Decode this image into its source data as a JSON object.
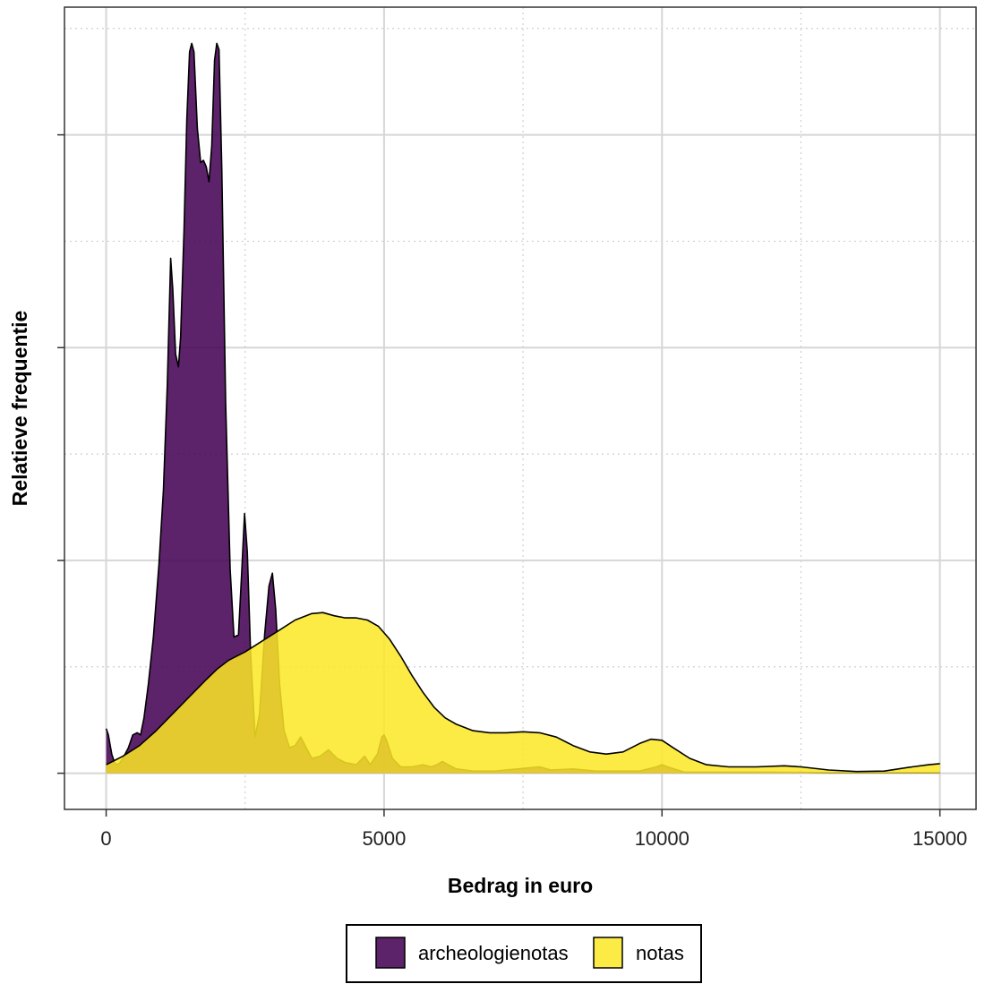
{
  "chart_data": {
    "type": "area",
    "subtype": "density",
    "title": "",
    "xlabel": "Bedrag in euro",
    "ylabel": "Relatieve frequentie",
    "xlim": [
      -750,
      15650
    ],
    "ylim": [
      -0.17,
      3.6
    ],
    "x_ticks": [
      0,
      5000,
      10000,
      15000
    ],
    "x_tick_labels": [
      "0",
      "5000",
      "10000",
      "15000"
    ],
    "y_ticks": [
      0,
      1,
      2,
      3
    ],
    "y_tick_labels_shown": false,
    "grid": true,
    "legend_position": "bottom",
    "series": [
      {
        "name": "archeologienotas",
        "color": "#440154",
        "fill_opacity": 0.87,
        "points": [
          [
            0,
            0.21
          ],
          [
            40,
            0.18
          ],
          [
            100,
            0.09
          ],
          [
            150,
            0.05
          ],
          [
            200,
            0.04
          ],
          [
            250,
            0.05
          ],
          [
            300,
            0.07
          ],
          [
            400,
            0.12
          ],
          [
            480,
            0.18
          ],
          [
            560,
            0.19
          ],
          [
            620,
            0.18
          ],
          [
            680,
            0.26
          ],
          [
            760,
            0.42
          ],
          [
            850,
            0.64
          ],
          [
            950,
            0.98
          ],
          [
            1030,
            1.33
          ],
          [
            1100,
            1.82
          ],
          [
            1160,
            2.42
          ],
          [
            1200,
            2.27
          ],
          [
            1250,
            1.97
          ],
          [
            1300,
            1.91
          ],
          [
            1340,
            2.05
          ],
          [
            1400,
            2.55
          ],
          [
            1450,
            3.07
          ],
          [
            1500,
            3.39
          ],
          [
            1540,
            3.43
          ],
          [
            1580,
            3.39
          ],
          [
            1640,
            3.03
          ],
          [
            1700,
            2.87
          ],
          [
            1750,
            2.88
          ],
          [
            1800,
            2.85
          ],
          [
            1850,
            2.78
          ],
          [
            1900,
            2.95
          ],
          [
            1950,
            3.35
          ],
          [
            1990,
            3.43
          ],
          [
            2030,
            3.4
          ],
          [
            2080,
            2.84
          ],
          [
            2150,
            1.74
          ],
          [
            2230,
            0.96
          ],
          [
            2300,
            0.64
          ],
          [
            2380,
            0.65
          ],
          [
            2440,
            0.95
          ],
          [
            2490,
            1.22
          ],
          [
            2540,
            1.04
          ],
          [
            2600,
            0.56
          ],
          [
            2680,
            0.17
          ],
          [
            2760,
            0.28
          ],
          [
            2850,
            0.65
          ],
          [
            2930,
            0.88
          ],
          [
            2990,
            0.94
          ],
          [
            3050,
            0.77
          ],
          [
            3120,
            0.42
          ],
          [
            3200,
            0.2
          ],
          [
            3300,
            0.12
          ],
          [
            3400,
            0.13
          ],
          [
            3500,
            0.17
          ],
          [
            3600,
            0.12
          ],
          [
            3700,
            0.07
          ],
          [
            3850,
            0.08
          ],
          [
            4000,
            0.11
          ],
          [
            4150,
            0.07
          ],
          [
            4300,
            0.05
          ],
          [
            4500,
            0.04
          ],
          [
            4650,
            0.08
          ],
          [
            4750,
            0.04
          ],
          [
            4880,
            0.09
          ],
          [
            4960,
            0.17
          ],
          [
            5000,
            0.18
          ],
          [
            5050,
            0.15
          ],
          [
            5150,
            0.07
          ],
          [
            5300,
            0.03
          ],
          [
            5500,
            0.03
          ],
          [
            5700,
            0.04
          ],
          [
            5850,
            0.03
          ],
          [
            5950,
            0.04
          ],
          [
            6050,
            0.055
          ],
          [
            6150,
            0.04
          ],
          [
            6300,
            0.02
          ],
          [
            6600,
            0.01
          ],
          [
            7000,
            0.01
          ],
          [
            7400,
            0.02
          ],
          [
            7800,
            0.03
          ],
          [
            8000,
            0.015
          ],
          [
            8400,
            0.02
          ],
          [
            8800,
            0.01
          ],
          [
            9200,
            0.01
          ],
          [
            9600,
            0.01
          ],
          [
            9900,
            0.03
          ],
          [
            10000,
            0.04
          ],
          [
            10100,
            0.03
          ],
          [
            10400,
            0.005
          ],
          [
            11000,
            0.005
          ],
          [
            12000,
            0.005
          ],
          [
            13000,
            0.003
          ],
          [
            14000,
            0.003
          ],
          [
            15000,
            0.003
          ]
        ]
      },
      {
        "name": "notas",
        "color": "#FDE725",
        "fill_opacity": 0.85,
        "points": [
          [
            0,
            0.04
          ],
          [
            300,
            0.08
          ],
          [
            600,
            0.13
          ],
          [
            900,
            0.2
          ],
          [
            1200,
            0.28
          ],
          [
            1500,
            0.36
          ],
          [
            1800,
            0.44
          ],
          [
            2000,
            0.49
          ],
          [
            2200,
            0.53
          ],
          [
            2500,
            0.57
          ],
          [
            2800,
            0.62
          ],
          [
            3100,
            0.67
          ],
          [
            3400,
            0.72
          ],
          [
            3700,
            0.75
          ],
          [
            3900,
            0.755
          ],
          [
            4100,
            0.74
          ],
          [
            4300,
            0.73
          ],
          [
            4500,
            0.73
          ],
          [
            4700,
            0.72
          ],
          [
            4900,
            0.69
          ],
          [
            5100,
            0.63
          ],
          [
            5300,
            0.55
          ],
          [
            5500,
            0.46
          ],
          [
            5700,
            0.38
          ],
          [
            5900,
            0.31
          ],
          [
            6100,
            0.26
          ],
          [
            6300,
            0.23
          ],
          [
            6600,
            0.2
          ],
          [
            6900,
            0.19
          ],
          [
            7200,
            0.19
          ],
          [
            7500,
            0.195
          ],
          [
            7800,
            0.19
          ],
          [
            8100,
            0.17
          ],
          [
            8400,
            0.13
          ],
          [
            8700,
            0.1
          ],
          [
            9000,
            0.09
          ],
          [
            9300,
            0.1
          ],
          [
            9600,
            0.14
          ],
          [
            9800,
            0.16
          ],
          [
            10000,
            0.155
          ],
          [
            10200,
            0.12
          ],
          [
            10500,
            0.07
          ],
          [
            10800,
            0.04
          ],
          [
            11200,
            0.03
          ],
          [
            11700,
            0.03
          ],
          [
            12200,
            0.035
          ],
          [
            12500,
            0.03
          ],
          [
            13000,
            0.015
          ],
          [
            13500,
            0.008
          ],
          [
            14000,
            0.01
          ],
          [
            14500,
            0.03
          ],
          [
            14800,
            0.04
          ],
          [
            15000,
            0.045
          ]
        ]
      }
    ]
  }
}
